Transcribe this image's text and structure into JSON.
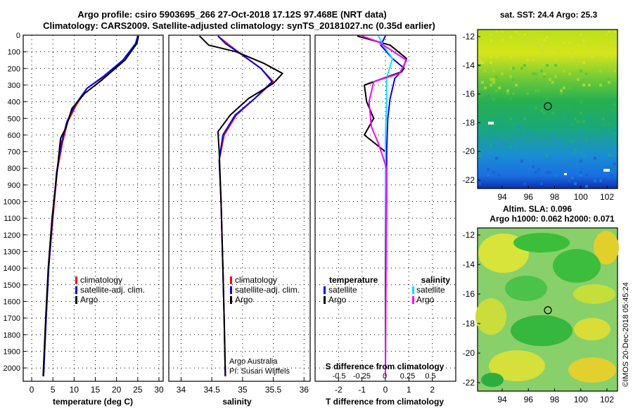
{
  "header": {
    "title_line1": "Argo profile: csiro 5903695_266 27-Oct-2018 17.12S 97.468E (NRT data)",
    "title_line2": "Climatology: CARS2009. Satellite-adjusted climatology: synTS_20181027.nc (0.35d earlier)"
  },
  "colors": {
    "climatology": "#ff0000",
    "satellite": "#0000ff",
    "argo": "#000000",
    "salinity_satellite": "#00e5ff",
    "salinity_argo": "#ff00ff"
  },
  "chart_data": [
    {
      "type": "line",
      "panel": "temperature",
      "xlabel": "temperature (deg C)",
      "xlim": [
        -2,
        31
      ],
      "xticks": [
        0,
        5,
        10,
        15,
        20,
        25,
        30
      ],
      "ylim": [
        2080,
        0
      ],
      "yticks": [
        0,
        100,
        200,
        300,
        400,
        500,
        600,
        700,
        800,
        900,
        1000,
        1100,
        1200,
        1300,
        1400,
        1500,
        1600,
        1700,
        1800,
        1900,
        2000
      ],
      "legend": [
        "climatology",
        "satellite-adj. clim.",
        "Argo"
      ],
      "series": [
        {
          "name": "climatology",
          "x": [
            25,
            24.6,
            22,
            17,
            13,
            10.5,
            8.5,
            7.2,
            6,
            5,
            4,
            3.4,
            2.8
          ],
          "y": [
            5,
            50,
            150,
            250,
            320,
            420,
            520,
            650,
            820,
            1100,
            1400,
            1700,
            2050
          ]
        },
        {
          "name": "satellite-adj. clim.",
          "x": [
            25,
            24.5,
            21.5,
            16.8,
            13,
            10.2,
            8.3,
            7,
            5.9,
            4.9,
            4,
            3.4,
            2.8
          ],
          "y": [
            5,
            50,
            150,
            250,
            320,
            420,
            520,
            650,
            820,
            1100,
            1400,
            1700,
            2050
          ]
        },
        {
          "name": "Argo",
          "x": [
            25.2,
            24.8,
            22,
            16.5,
            12.5,
            9.5,
            8,
            6.8,
            6,
            4.8,
            3.9,
            3.3,
            2.7
          ],
          "y": [
            5,
            50,
            150,
            270,
            350,
            440,
            560,
            620,
            820,
            1100,
            1400,
            1700,
            2050
          ]
        }
      ]
    },
    {
      "type": "line",
      "panel": "salinity",
      "xlabel": "salinity",
      "xlim": [
        33.8,
        36.1
      ],
      "xticks": [
        34,
        34.5,
        35,
        35.5,
        36
      ],
      "xticklabels": [
        "34",
        "34.5",
        "35",
        "35.5",
        "36"
      ],
      "legend": [
        "climatology",
        "satellite-adj. clim.",
        "Argo"
      ],
      "credit": [
        "Argo Australia",
        "PI: Susan Wijffels"
      ],
      "series": [
        {
          "name": "climatology",
          "x": [
            34.6,
            34.75,
            35.0,
            35.3,
            35.5,
            35.2,
            34.9,
            34.7,
            34.62,
            34.65,
            34.68,
            34.7,
            34.72
          ],
          "y": [
            5,
            50,
            120,
            200,
            280,
            380,
            480,
            600,
            750,
            1000,
            1400,
            1700,
            2050
          ]
        },
        {
          "name": "satellite-adj. clim.",
          "x": [
            34.6,
            34.72,
            35.0,
            35.3,
            35.48,
            35.2,
            34.88,
            34.68,
            34.62,
            34.65,
            34.68,
            34.7,
            34.72
          ],
          "y": [
            5,
            50,
            120,
            200,
            280,
            380,
            480,
            600,
            750,
            1000,
            1400,
            1700,
            2050
          ]
        },
        {
          "name": "Argo",
          "x": [
            34.3,
            34.45,
            34.9,
            35.35,
            35.65,
            35.5,
            35.1,
            34.8,
            34.6,
            34.62,
            34.65,
            34.68,
            34.7,
            34.72
          ],
          "y": [
            5,
            60,
            100,
            170,
            230,
            290,
            380,
            480,
            580,
            700,
            1000,
            1400,
            1700,
            2050
          ]
        }
      ]
    },
    {
      "type": "line",
      "panel": "difference",
      "xlabel": "T difference from climatology",
      "xlabel_top": "S difference from climatology",
      "xlim": [
        -3,
        3
      ],
      "xticks": [
        -2,
        -1,
        0,
        1,
        2
      ],
      "sticks": [
        -0.5,
        -0.25,
        0,
        0.25,
        0.5
      ],
      "sticklabels": [
        "-0.5",
        "-0.25",
        "0",
        "0.25",
        "0.5"
      ],
      "legend_left_title": "temperature",
      "legend_right_title": "salinity",
      "legend_left": [
        "satellite",
        "Argo"
      ],
      "legend_right": [
        "satellite",
        "Argo"
      ],
      "series": [
        {
          "name": "temperature satellite",
          "x": [
            0,
            -0.2,
            0.3,
            0.8,
            0.4,
            0.2,
            0.1,
            0.05,
            0.05,
            0,
            0
          ],
          "y": [
            5,
            60,
            140,
            200,
            260,
            380,
            500,
            700,
            1000,
            1500,
            2050
          ]
        },
        {
          "name": "temperature Argo",
          "x": [
            -1.2,
            0.2,
            0.9,
            0.7,
            -0.9,
            -0.8,
            -0.5,
            -0.9,
            0,
            0,
            0
          ],
          "y": [
            5,
            60,
            140,
            220,
            300,
            400,
            500,
            600,
            700,
            1500,
            2050
          ]
        },
        {
          "name": "salinity satellite",
          "x": [
            -0.3,
            -0.1,
            0.3,
            0.05,
            0.05,
            0,
            0,
            0.02,
            0
          ],
          "y": [
            5,
            60,
            140,
            260,
            400,
            600,
            900,
            1500,
            2050
          ]
        },
        {
          "name": "salinity Argo",
          "x": [
            -1.0,
            -0.3,
            0.9,
            0.6,
            -0.5,
            -0.7,
            -0.6,
            -0.3,
            0.05,
            0.02,
            0
          ],
          "y": [
            5,
            40,
            150,
            230,
            280,
            400,
            550,
            650,
            800,
            1500,
            2050
          ]
        }
      ]
    }
  ],
  "maps": {
    "sst": {
      "title": "sat. SST: 24.4 Argo: 25.3",
      "yticks": [
        "-12",
        "-14",
        "-16",
        "-18",
        "-20",
        "-22"
      ],
      "xticks": [
        "94",
        "96",
        "98",
        "100",
        "102"
      ]
    },
    "sla": {
      "title_line1": "Altim. SLA: 0.096",
      "title_line2": "Argo h1000: 0.062 h2000: 0.071",
      "yticks": [
        "-12",
        "-14",
        "-16",
        "-18",
        "-20",
        "-22"
      ],
      "xticks": [
        "94",
        "96",
        "98",
        "100",
        "102"
      ]
    }
  },
  "footer": {
    "stamp": "©IMOS 20-Dec-2018 05:45:24"
  }
}
